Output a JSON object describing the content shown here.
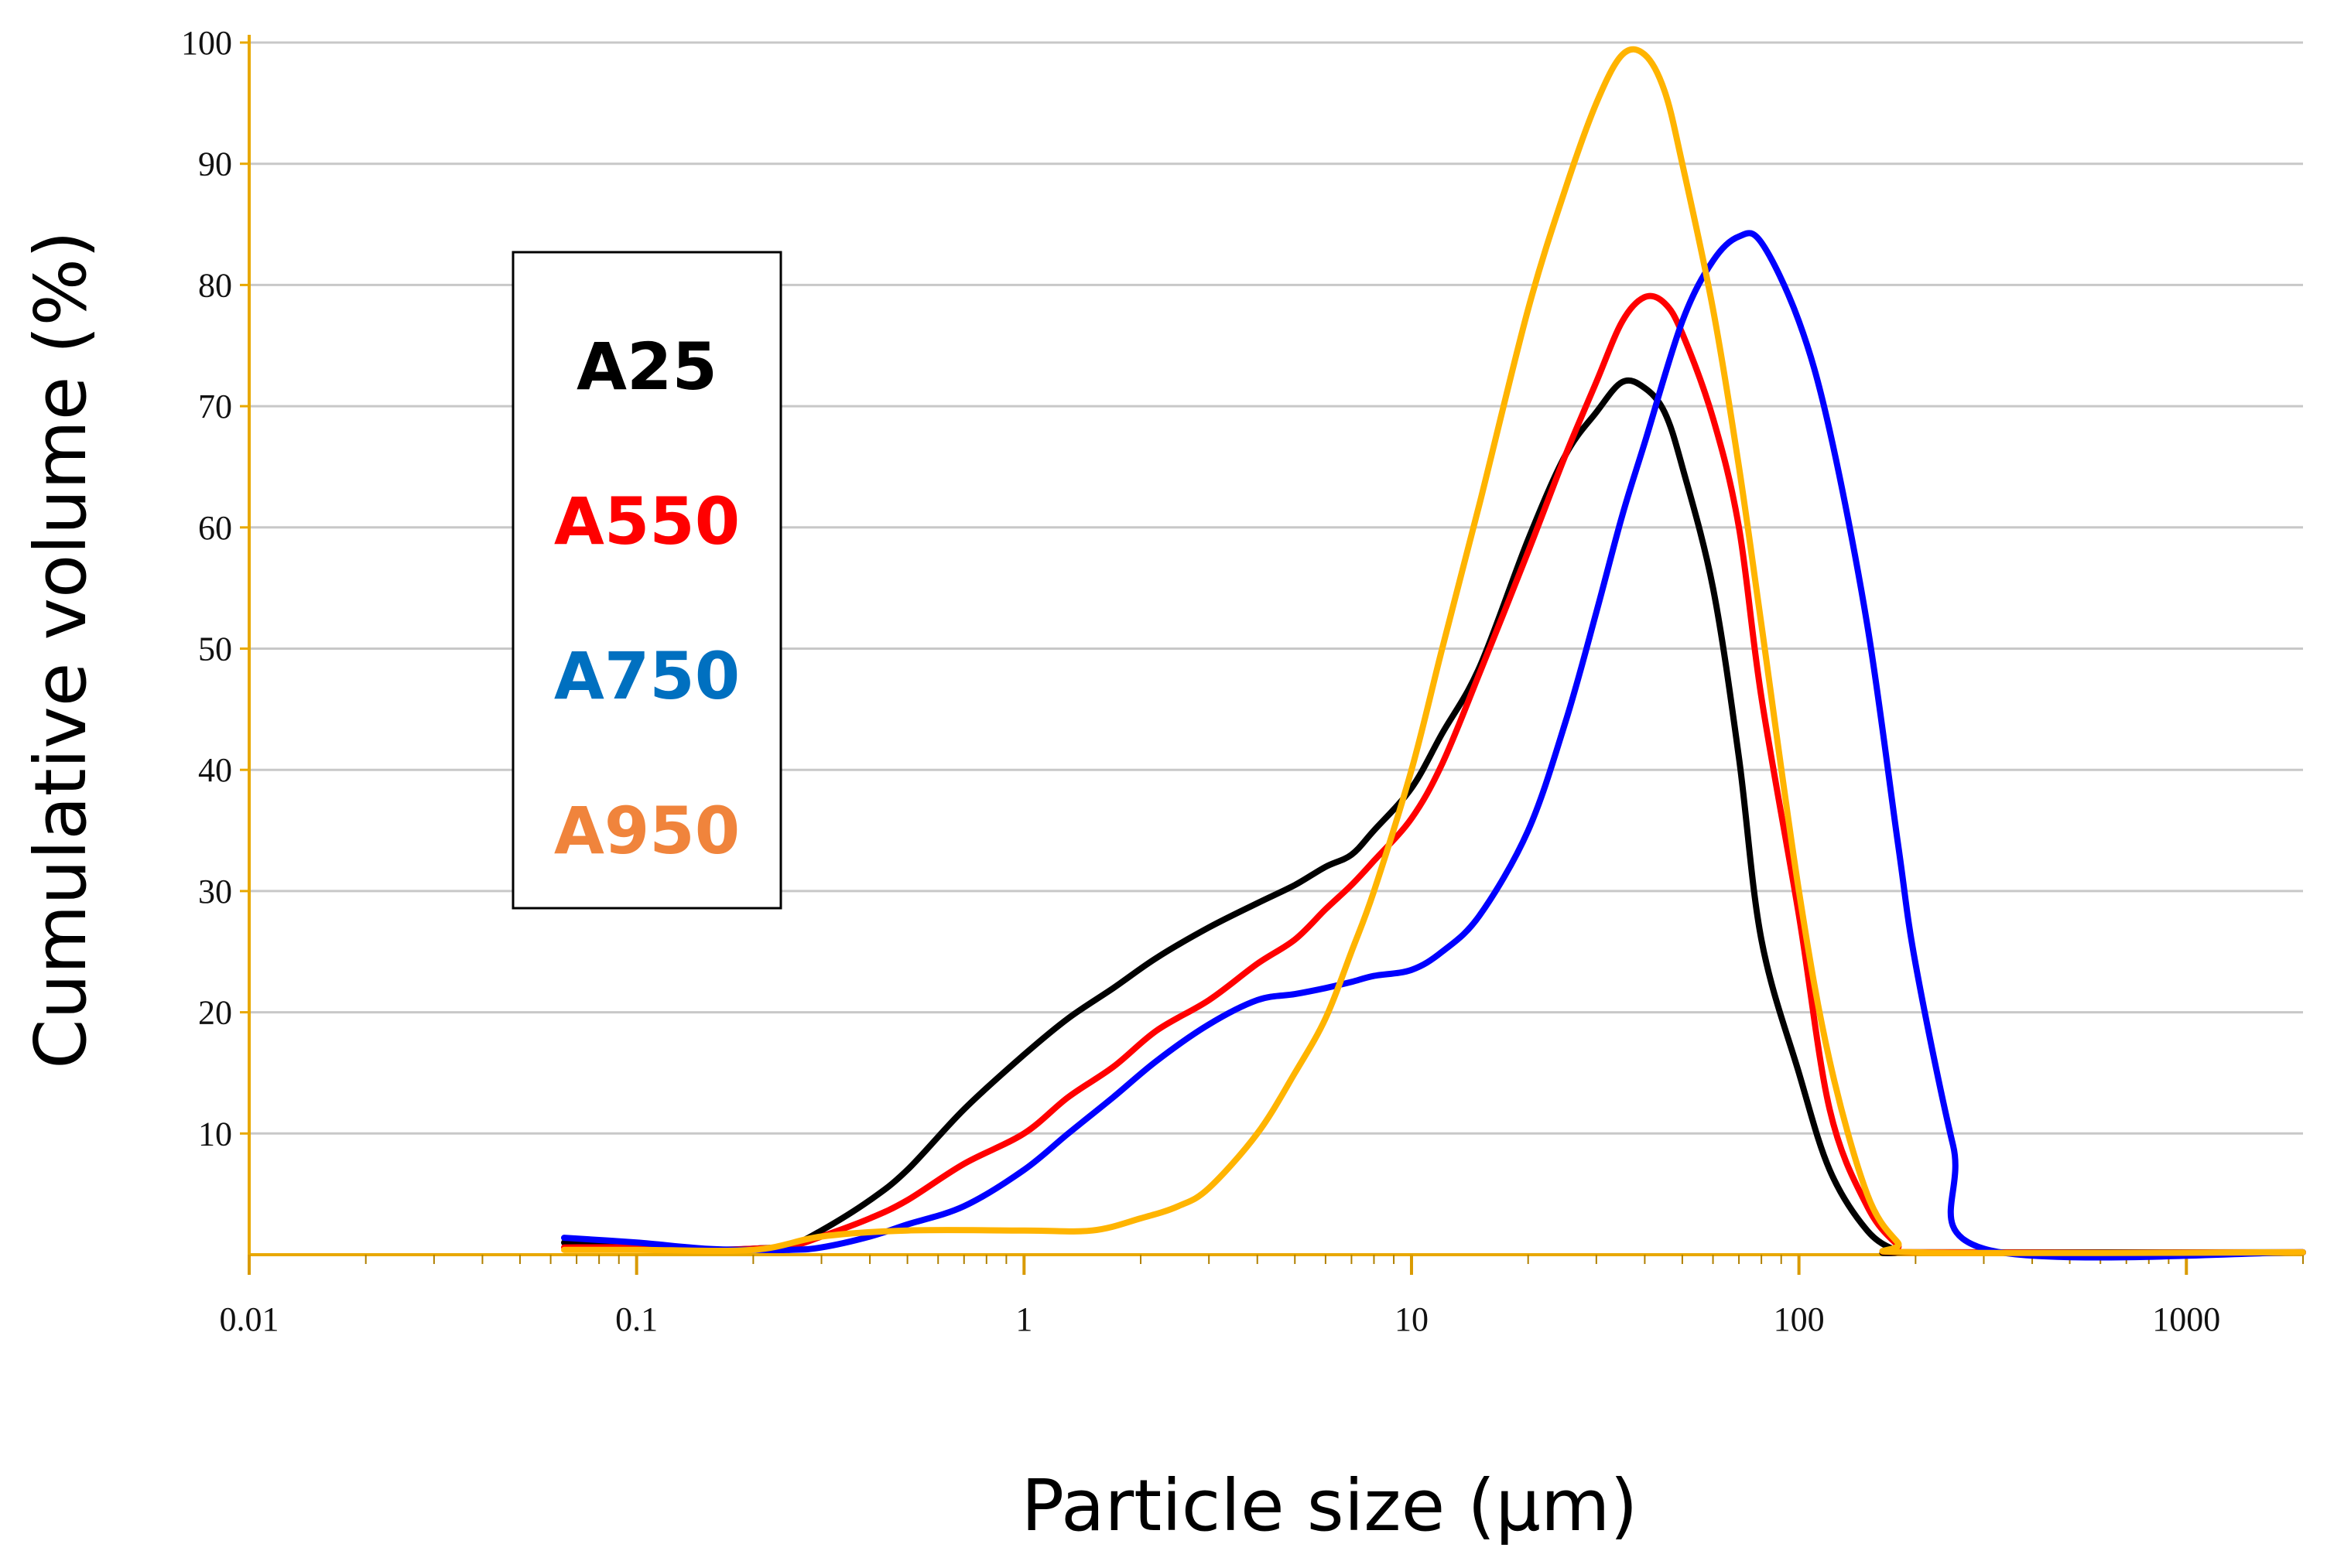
{
  "chart_data": {
    "type": "line",
    "title": "",
    "xlabel": "Particle size (µm)",
    "ylabel": "Cumulative volume (%)",
    "xscale": "log",
    "xlim": [
      0.01,
      2000
    ],
    "ylim": [
      0,
      100
    ],
    "xticks": [
      0.01,
      0.1,
      1,
      10,
      100,
      1000
    ],
    "xtick_labels": [
      "0.01",
      "0.1",
      "1",
      "10",
      "100",
      "1000"
    ],
    "yticks": [
      10,
      20,
      30,
      40,
      50,
      60,
      70,
      80,
      90,
      100
    ],
    "ytick_labels": [
      "10",
      "20",
      "30",
      "40",
      "50",
      "60",
      "70",
      "80",
      "90",
      "100"
    ],
    "grid": true,
    "legend_position": "left-inside",
    "legend": [
      "A25",
      "A550",
      "A750",
      "A950"
    ],
    "series": [
      {
        "name": "A25",
        "color": "#000000",
        "x": [
          0.065,
          0.1,
          0.15,
          0.2,
          0.25,
          0.3,
          0.4,
          0.5,
          0.7,
          1,
          1.3,
          1.7,
          2.2,
          3,
          4,
          5,
          6,
          7,
          8,
          10,
          12,
          15,
          20,
          25,
          30,
          35,
          40,
          45,
          50,
          60,
          70,
          80,
          100,
          120,
          150,
          180,
          200,
          2000
        ],
        "y": [
          1,
          0.8,
          0.4,
          0.5,
          0.8,
          2,
          4.5,
          7,
          12,
          16.5,
          19.5,
          22,
          24.5,
          27,
          29,
          30.5,
          32,
          33,
          35,
          38.5,
          43,
          48.5,
          59,
          66,
          69.5,
          72,
          71.5,
          69.5,
          65,
          55,
          41,
          26,
          15,
          7,
          2,
          0.3,
          0.2,
          0.2
        ]
      },
      {
        "name": "A550",
        "color": "#ff0000",
        "x": [
          0.065,
          0.1,
          0.15,
          0.2,
          0.25,
          0.3,
          0.4,
          0.5,
          0.7,
          1,
          1.3,
          1.7,
          2.2,
          3,
          4,
          5,
          6,
          7,
          8,
          10,
          12,
          15,
          20,
          25,
          30,
          35,
          40,
          45,
          50,
          60,
          70,
          80,
          100,
          120,
          150,
          180,
          200,
          2000
        ],
        "y": [
          0.6,
          0.6,
          0.4,
          0.5,
          0.7,
          1.5,
          3,
          4.5,
          7.5,
          10,
          13,
          15.5,
          18.5,
          21,
          24,
          26,
          28.5,
          30.5,
          32.5,
          36,
          40.5,
          48,
          58,
          66,
          72,
          77,
          79,
          78.5,
          76,
          69,
          60,
          46,
          28,
          12,
          4,
          0.8,
          0.2,
          0.2
        ]
      },
      {
        "name": "A750",
        "color": "#0000ff",
        "x": [
          0.065,
          0.1,
          0.15,
          0.2,
          0.25,
          0.3,
          0.4,
          0.5,
          0.7,
          1,
          1.3,
          1.7,
          2.2,
          3,
          4,
          5,
          6,
          7,
          8,
          10,
          12,
          15,
          20,
          25,
          30,
          35,
          40,
          50,
          60,
          70,
          80,
          100,
          120,
          150,
          180,
          200,
          250,
          300,
          2000
        ],
        "y": [
          1.4,
          1,
          0.5,
          0.4,
          0.4,
          0.6,
          1.5,
          2.5,
          4,
          7,
          10,
          13,
          16,
          19,
          21,
          21.5,
          22,
          22.5,
          23,
          23.5,
          25,
          28,
          35,
          44,
          53,
          61,
          67,
          77,
          82,
          84,
          83.5,
          77,
          68,
          52,
          34,
          24,
          9,
          0.5,
          0.2
        ]
      },
      {
        "name": "A950",
        "color": "#ffb400",
        "x": [
          0.065,
          0.1,
          0.2,
          0.3,
          0.5,
          1,
          1.5,
          2,
          2.5,
          3,
          4,
          5,
          6,
          7,
          8,
          10,
          12,
          15,
          20,
          25,
          30,
          35,
          40,
          45,
          50,
          60,
          70,
          80,
          100,
          120,
          150,
          180,
          200,
          2000
        ],
        "y": [
          0.4,
          0.4,
          0.4,
          1.5,
          2,
          2,
          2,
          3,
          4,
          5.5,
          10,
          15,
          19.5,
          25,
          30,
          40,
          50,
          62,
          78,
          88,
          95,
          99,
          99,
          96,
          90,
          78,
          65,
          52,
          30,
          16,
          5,
          1,
          0.2,
          0.2
        ]
      }
    ]
  }
}
